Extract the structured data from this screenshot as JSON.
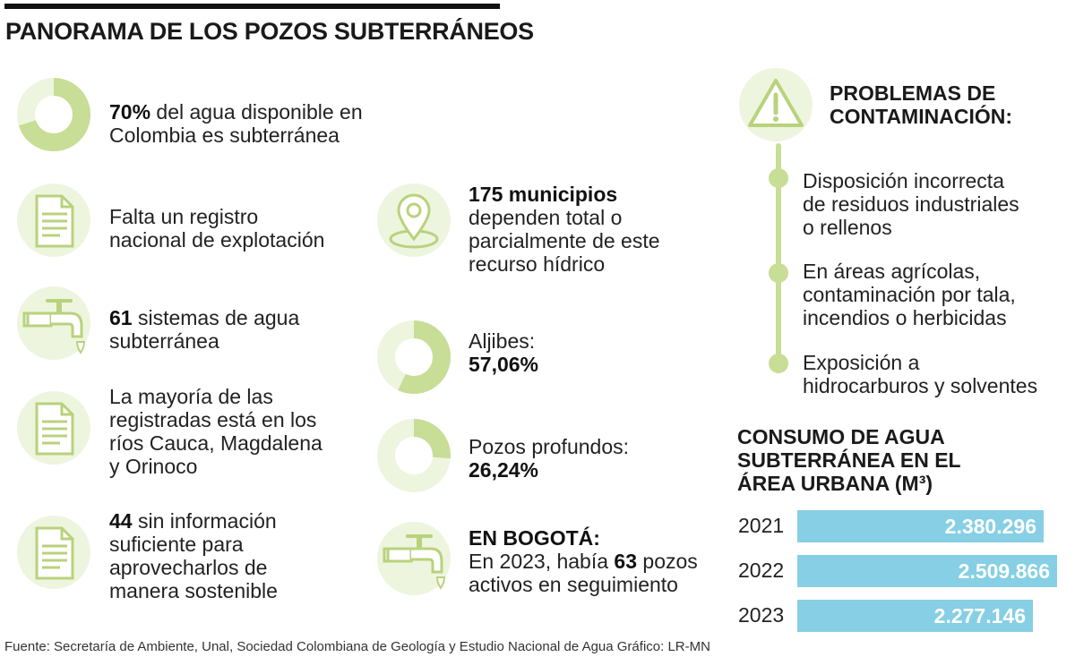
{
  "title": "PANORAMA DE LOS POZOS SUBTERRÁNEOS",
  "colors": {
    "green": "#c8dd96",
    "green_light": "#eef5de",
    "bar": "#86cfe4",
    "dark": "#111111"
  },
  "stats": {
    "agua": {
      "bold": "70%",
      "rest": " del agua disponible en",
      "line2": "Colombia es subterránea",
      "percent": 70
    },
    "registro": {
      "line1": "Falta un registro",
      "line2": "nacional de explotación"
    },
    "sistemas": {
      "bold": "61",
      "rest": " sistemas de agua",
      "line2": "subterránea"
    },
    "rios": {
      "line1": "La mayoría de las",
      "line2": "registradas está en los",
      "line3": "ríos Cauca, Magdalena",
      "line4": "y Orinoco"
    },
    "sin_info": {
      "bold": "44",
      "rest": " sin información",
      "line2": "suficiente para",
      "line3": "aprovecharlos de",
      "line4": "manera sostenible"
    },
    "municipios": {
      "bold": "175 municipios",
      "line2": "dependen total o",
      "line3": "parcialmente de este",
      "line4": "recurso hídrico"
    },
    "aljibes": {
      "label": "Aljibes:",
      "value": "57,06%",
      "percent": 57.06
    },
    "pozos": {
      "label": "Pozos profundos:",
      "value": "26,24%",
      "percent": 26.24
    },
    "bogota": {
      "heading": "EN BOGOTÁ:",
      "pre": "En 2023, había ",
      "bold": "63",
      "post": " pozos",
      "line2": "activos en seguimiento"
    }
  },
  "problems": {
    "title_line1": "PROBLEMAS DE",
    "title_line2": "CONTAMINACIÓN:",
    "items": [
      {
        "line1": "Disposición incorrecta",
        "line2": "de residuos industriales",
        "line3": "o rellenos"
      },
      {
        "line1": "En áreas agrícolas,",
        "line2": "contaminación por tala,",
        "line3": "incendios o herbicidas"
      },
      {
        "line1": "Exposición a",
        "line2": "hidrocarburos y solventes"
      }
    ]
  },
  "chart_data": {
    "type": "bar",
    "title": "CONSUMO DE AGUA SUBTERRÁNEA EN EL ÁREA URBANA (M³)",
    "title_lines": [
      "CONSUMO DE AGUA",
      "SUBTERRÁNEA EN EL",
      "ÁREA URBANA (M³)"
    ],
    "orientation": "horizontal",
    "categories": [
      "2021",
      "2022",
      "2023"
    ],
    "values": [
      2380296,
      2509866,
      2277146
    ],
    "value_labels": [
      "2.380.296",
      "2.509.866",
      "2.277.146"
    ]
  },
  "source": "Fuente: Secretaría de Ambiente, Unal, Sociedad Colombiana de Geología y Estudio Nacional de Agua       Gráfico: LR-MN"
}
